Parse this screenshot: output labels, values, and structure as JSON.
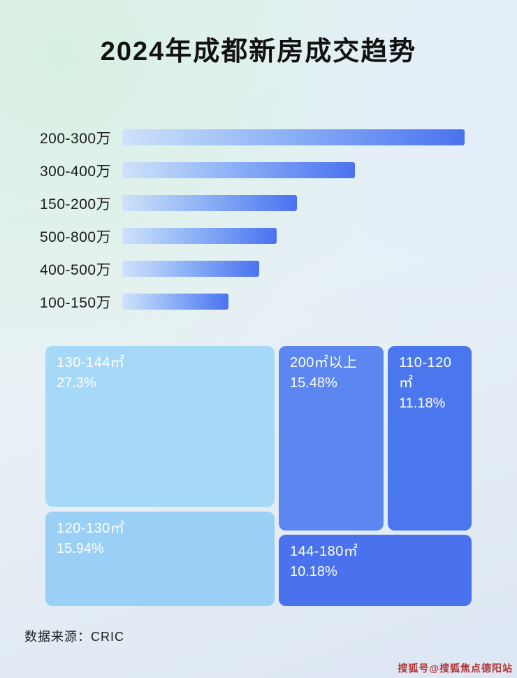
{
  "page": {
    "title": "2024年成都新房成交趋势",
    "source": "数据来源：CRIC",
    "watermark": "搜狐号@搜狐焦点德阳站"
  },
  "colors": {
    "bar_gradient_start": "#cfe2fa",
    "bar_gradient_end": "#4a72f0",
    "treemap_light_blue": "#a6d8f8",
    "treemap_medium_blue": "#5c87f0",
    "treemap_royal_blue": "#4a72ec",
    "watermark_red": "#b23434"
  },
  "chart_data": [
    {
      "type": "bar",
      "orientation": "horizontal",
      "title": "",
      "xlabel": "",
      "ylabel": "",
      "note": "no numeric axis shown; values are estimated relative bar lengths, max = 100",
      "categories": [
        "200-300万",
        "300-400万",
        "150-200万",
        "500-800万",
        "400-500万",
        "100-150万"
      ],
      "values": [
        100,
        68,
        51,
        45,
        40,
        31
      ],
      "grid": false,
      "legend": false
    },
    {
      "type": "treemap",
      "title": "",
      "items": [
        {
          "label": "130-144㎡",
          "value": 27.3,
          "pct": "27.3%"
        },
        {
          "label": "120-130㎡",
          "value": 15.94,
          "pct": "15.94%"
        },
        {
          "label": "200㎡以上",
          "value": 15.48,
          "pct": "15.48%"
        },
        {
          "label": "110-120㎡",
          "value": 11.18,
          "pct": "11.18%"
        },
        {
          "label": "144-180㎡",
          "value": 10.18,
          "pct": "10.18%"
        }
      ]
    }
  ]
}
